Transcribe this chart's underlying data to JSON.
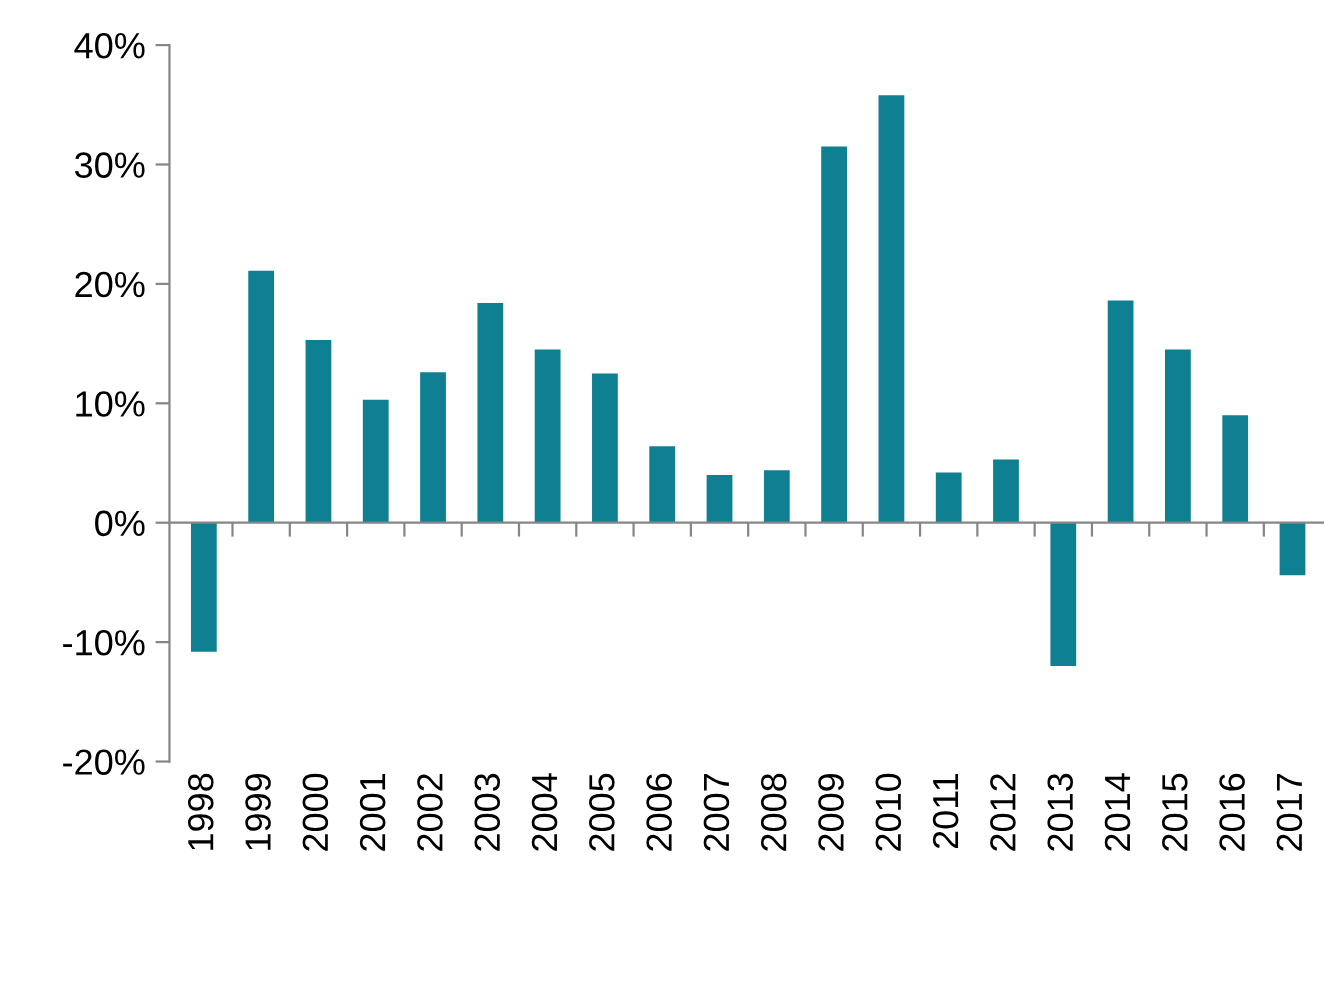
{
  "chart_data": {
    "type": "bar",
    "categories": [
      "1998",
      "1999",
      "2000",
      "2001",
      "2002",
      "2003",
      "2004",
      "2005",
      "2006",
      "2007",
      "2008",
      "2009",
      "2010",
      "2011",
      "2012",
      "2013",
      "2014",
      "2015",
      "2016",
      "2017"
    ],
    "series": [
      {
        "color": "#0f7f92",
        "values": [
          -10.8,
          21.1,
          15.3,
          10.3,
          12.6,
          18.4,
          14.5,
          12.5,
          6.4,
          4.0,
          4.4,
          31.5,
          35.8,
          4.2,
          5.3,
          -12.0,
          18.6,
          14.5,
          9.0,
          -4.4
        ]
      }
    ],
    "ylim": [
      -20,
      40
    ],
    "yticks": [
      {
        "value": -20,
        "label": "-20%"
      },
      {
        "value": -10,
        "label": "-10%"
      },
      {
        "value": 0,
        "label": "0%"
      },
      {
        "value": 10,
        "label": "10%"
      },
      {
        "value": 20,
        "label": "20%"
      },
      {
        "value": 30,
        "label": "30%"
      },
      {
        "value": 40,
        "label": "40%"
      }
    ]
  }
}
